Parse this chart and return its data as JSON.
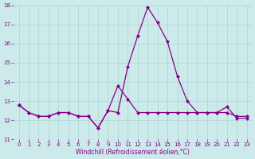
{
  "line1_x": [
    0,
    1,
    2,
    3,
    4,
    5,
    6,
    7,
    8,
    9,
    10,
    11,
    12,
    13,
    14,
    15,
    16,
    17,
    18,
    19,
    20,
    21,
    22,
    23
  ],
  "line1_y": [
    12.8,
    12.4,
    12.2,
    12.2,
    12.4,
    12.4,
    12.2,
    12.2,
    11.6,
    12.5,
    12.4,
    14.8,
    16.4,
    17.9,
    17.1,
    16.1,
    14.3,
    13.0,
    12.4,
    12.4,
    12.4,
    12.7,
    12.1,
    12.1
  ],
  "line2_x": [
    0,
    1,
    2,
    3,
    4,
    5,
    6,
    7,
    8,
    9,
    10,
    11,
    12,
    13,
    14,
    15,
    16,
    17,
    18,
    19,
    20,
    21,
    22,
    23
  ],
  "line2_y": [
    12.8,
    12.4,
    12.2,
    12.2,
    12.4,
    12.4,
    12.2,
    12.2,
    11.6,
    12.5,
    13.8,
    13.1,
    12.4,
    12.4,
    12.4,
    12.4,
    12.4,
    12.4,
    12.4,
    12.4,
    12.4,
    12.4,
    12.2,
    12.2
  ],
  "color": "#880088",
  "bg_color": "#cceaea",
  "grid_color": "#aad4d4",
  "xlabel": "Windchill (Refroidissement éolien,°C)",
  "xlim_min": -0.5,
  "xlim_max": 23.5,
  "ylim_min": 11,
  "ylim_max": 18,
  "yticks": [
    11,
    12,
    13,
    14,
    15,
    16,
    17,
    18
  ],
  "xticks": [
    0,
    1,
    2,
    3,
    4,
    5,
    6,
    7,
    8,
    9,
    10,
    11,
    12,
    13,
    14,
    15,
    16,
    17,
    18,
    19,
    20,
    21,
    22,
    23
  ],
  "xlabel_fontsize": 5.5,
  "tick_fontsize": 5,
  "marker_size": 2.5,
  "linewidth": 0.9
}
